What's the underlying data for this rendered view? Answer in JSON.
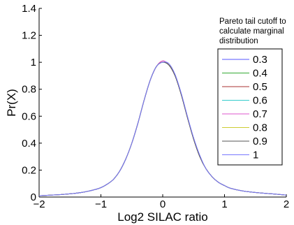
{
  "chart_data": {
    "type": "line",
    "title": "",
    "xlabel": "Log2 SILAC ratio",
    "ylabel": "Pr(X)",
    "xlim": [
      -2,
      2
    ],
    "ylim": [
      0,
      1.4
    ],
    "x_ticks": [
      -2,
      -1,
      0,
      1,
      2
    ],
    "x_tick_labels": [
      "−2",
      "−1",
      "0",
      "1",
      "2"
    ],
    "y_ticks": [
      0,
      0.2,
      0.4,
      0.6,
      0.8,
      1,
      1.2,
      1.4
    ],
    "y_tick_labels": [
      "0",
      "0.2",
      "0.4",
      "0.6",
      "0.8",
      "1",
      "1.2",
      "1.4"
    ],
    "grid": false,
    "legend": {
      "position": "right, partially outside axes",
      "title": [
        "Pareto tail cutoff to",
        "calculate marginal",
        "distribution"
      ]
    },
    "x": [
      -2.0,
      -1.6,
      -1.3,
      -1.1,
      -1.0,
      -0.9,
      -0.8,
      -0.7,
      -0.6,
      -0.5,
      -0.4,
      -0.3,
      -0.2,
      -0.1,
      0.0,
      0.1,
      0.2,
      0.3,
      0.4,
      0.5,
      0.6,
      0.7,
      0.8,
      0.9,
      1.0,
      1.1,
      1.3,
      1.6,
      2.0
    ],
    "series": [
      {
        "name": "0.3",
        "color": "#5555ff",
        "values": [
          0.01,
          0.02,
          0.035,
          0.055,
          0.07,
          0.095,
          0.13,
          0.19,
          0.28,
          0.4,
          0.55,
          0.72,
          0.87,
          0.97,
          1.0,
          0.98,
          0.9,
          0.76,
          0.59,
          0.43,
          0.3,
          0.21,
          0.15,
          0.11,
          0.085,
          0.065,
          0.045,
          0.03,
          0.015
        ]
      },
      {
        "name": "0.4",
        "color": "#33aa33",
        "values": [
          0.01,
          0.02,
          0.035,
          0.055,
          0.07,
          0.095,
          0.13,
          0.19,
          0.28,
          0.4,
          0.55,
          0.72,
          0.87,
          0.97,
          1.0,
          0.98,
          0.9,
          0.76,
          0.59,
          0.43,
          0.3,
          0.21,
          0.15,
          0.11,
          0.085,
          0.065,
          0.045,
          0.03,
          0.015
        ]
      },
      {
        "name": "0.5",
        "color": "#aa3333",
        "values": [
          0.01,
          0.02,
          0.035,
          0.055,
          0.07,
          0.095,
          0.13,
          0.19,
          0.28,
          0.4,
          0.55,
          0.72,
          0.87,
          0.97,
          1.01,
          0.98,
          0.9,
          0.76,
          0.59,
          0.43,
          0.3,
          0.21,
          0.15,
          0.11,
          0.085,
          0.065,
          0.045,
          0.03,
          0.015
        ]
      },
      {
        "name": "0.6",
        "color": "#33cccc",
        "values": [
          0.01,
          0.02,
          0.035,
          0.055,
          0.07,
          0.095,
          0.13,
          0.19,
          0.28,
          0.4,
          0.55,
          0.72,
          0.87,
          0.97,
          1.0,
          0.98,
          0.9,
          0.76,
          0.59,
          0.43,
          0.3,
          0.21,
          0.15,
          0.11,
          0.085,
          0.065,
          0.045,
          0.03,
          0.015
        ]
      },
      {
        "name": "0.7",
        "color": "#dd55cc",
        "values": [
          0.01,
          0.02,
          0.035,
          0.055,
          0.07,
          0.095,
          0.13,
          0.19,
          0.28,
          0.4,
          0.55,
          0.72,
          0.87,
          0.97,
          1.01,
          0.98,
          0.9,
          0.76,
          0.59,
          0.43,
          0.3,
          0.21,
          0.15,
          0.11,
          0.085,
          0.065,
          0.045,
          0.03,
          0.015
        ]
      },
      {
        "name": "0.8",
        "color": "#cccc33",
        "values": [
          0.01,
          0.02,
          0.035,
          0.055,
          0.07,
          0.095,
          0.13,
          0.19,
          0.28,
          0.4,
          0.55,
          0.72,
          0.87,
          0.97,
          1.0,
          0.98,
          0.9,
          0.76,
          0.59,
          0.43,
          0.3,
          0.21,
          0.15,
          0.11,
          0.085,
          0.065,
          0.045,
          0.03,
          0.015
        ]
      },
      {
        "name": "0.9",
        "color": "#555555",
        "values": [
          0.01,
          0.02,
          0.035,
          0.055,
          0.07,
          0.095,
          0.13,
          0.19,
          0.28,
          0.4,
          0.55,
          0.72,
          0.87,
          0.97,
          1.0,
          0.98,
          0.9,
          0.76,
          0.59,
          0.43,
          0.3,
          0.21,
          0.15,
          0.11,
          0.085,
          0.065,
          0.045,
          0.03,
          0.015
        ]
      },
      {
        "name": "1",
        "color": "#7777ff",
        "values": [
          0.01,
          0.02,
          0.035,
          0.055,
          0.07,
          0.095,
          0.13,
          0.19,
          0.28,
          0.4,
          0.55,
          0.72,
          0.87,
          0.97,
          1.0,
          0.99,
          0.91,
          0.77,
          0.6,
          0.44,
          0.31,
          0.21,
          0.15,
          0.11,
          0.085,
          0.065,
          0.045,
          0.03,
          0.015
        ]
      }
    ]
  }
}
